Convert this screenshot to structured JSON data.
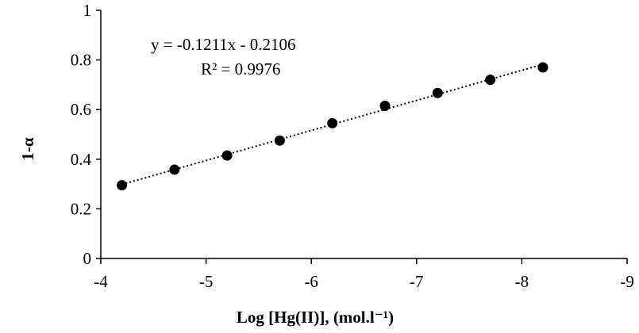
{
  "chart_data": {
    "type": "scatter",
    "xlabel": "Log [Hg(II)], (mol.l⁻¹)",
    "ylabel": "1-α",
    "x_ticks": [
      "-4",
      "-5",
      "-6",
      "-7",
      "-8",
      "-9"
    ],
    "y_ticks": [
      "0",
      "0.2",
      "0.4",
      "0.6",
      "0.8",
      "1"
    ],
    "xlim": [
      -4,
      -9
    ],
    "ylim": [
      0,
      1
    ],
    "grid": false,
    "series": [
      {
        "x": [
          -4.2,
          -4.7,
          -5.2,
          -5.7,
          -6.2,
          -6.7,
          -7.2,
          -7.7,
          -8.2
        ],
        "y": [
          0.295,
          0.358,
          0.415,
          0.475,
          0.545,
          0.615,
          0.667,
          0.72,
          0.77
        ]
      }
    ],
    "trendline": {
      "style": "dotted",
      "x_range": [
        -4.2,
        -8.2
      ],
      "equation": "y = -0.1211x - 0.2106",
      "r_squared": "R² = 0.9976"
    }
  }
}
